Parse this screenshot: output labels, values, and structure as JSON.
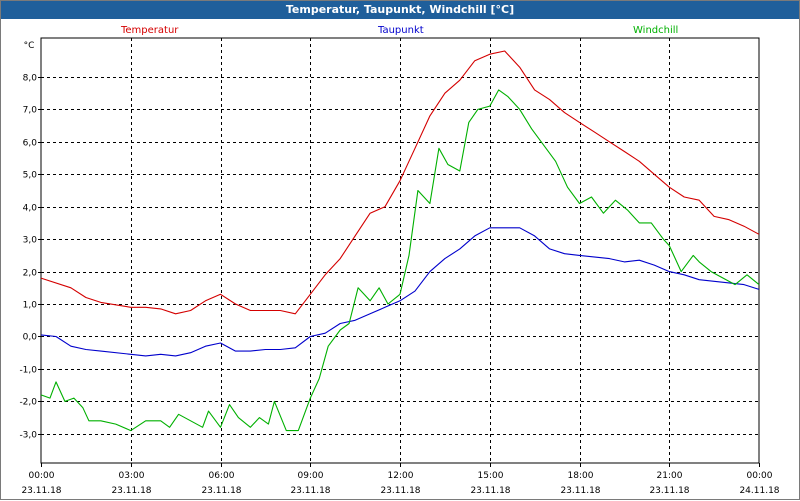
{
  "window": {
    "title": "Temperatur, Taupunkt, Windchill [°C]"
  },
  "chart_data": {
    "type": "line",
    "title": "Temperatur, Taupunkt, Windchill [°C]",
    "ylabel": "°C",
    "ylim": [
      -3.9,
      9.2
    ],
    "yticks": [
      -3.0,
      -2.0,
      -1.0,
      0.0,
      1.0,
      2.0,
      3.0,
      4.0,
      5.0,
      6.0,
      7.0,
      8.0
    ],
    "ytick_labels": [
      "-3,0",
      "-2,0",
      "-1,0",
      "0,0",
      "1,0",
      "2,0",
      "3,0",
      "4,0",
      "5,0",
      "6,0",
      "7,0",
      "8,0"
    ],
    "xlim": [
      0,
      24
    ],
    "xticks": [
      0,
      3,
      6,
      9,
      12,
      15,
      18,
      21,
      24
    ],
    "xtick_times": [
      "00:00",
      "03:00",
      "06:00",
      "09:00",
      "12:00",
      "15:00",
      "18:00",
      "21:00",
      "00:00"
    ],
    "xtick_dates": [
      "23.11.18",
      "23.11.18",
      "23.11.18",
      "23.11.18",
      "23.11.18",
      "23.11.18",
      "23.11.18",
      "23.11.18",
      "24.11.18"
    ],
    "grid": true,
    "legend_position": "top",
    "series": [
      {
        "name": "Temperatur",
        "color": "#d40000",
        "points": [
          [
            0,
            1.8
          ],
          [
            1,
            1.5
          ],
          [
            1.5,
            1.2
          ],
          [
            2,
            1.05
          ],
          [
            3,
            0.9
          ],
          [
            3.5,
            0.9
          ],
          [
            4,
            0.85
          ],
          [
            4.5,
            0.7
          ],
          [
            5,
            0.8
          ],
          [
            5.5,
            1.1
          ],
          [
            6,
            1.3
          ],
          [
            6.5,
            1.0
          ],
          [
            7,
            0.8
          ],
          [
            7.5,
            0.8
          ],
          [
            8,
            0.8
          ],
          [
            8.5,
            0.7
          ],
          [
            9,
            1.3
          ],
          [
            9.5,
            1.9
          ],
          [
            10,
            2.4
          ],
          [
            10.5,
            3.1
          ],
          [
            11,
            3.8
          ],
          [
            11.5,
            4.0
          ],
          [
            12,
            4.8
          ],
          [
            12.5,
            5.8
          ],
          [
            13,
            6.8
          ],
          [
            13.5,
            7.5
          ],
          [
            14,
            7.9
          ],
          [
            14.5,
            8.5
          ],
          [
            15,
            8.7
          ],
          [
            15.5,
            8.8
          ],
          [
            16,
            8.3
          ],
          [
            16.5,
            7.6
          ],
          [
            17,
            7.3
          ],
          [
            17.5,
            6.9
          ],
          [
            18,
            6.6
          ],
          [
            18.5,
            6.3
          ],
          [
            19,
            6.0
          ],
          [
            19.5,
            5.7
          ],
          [
            20,
            5.4
          ],
          [
            20.5,
            5.0
          ],
          [
            21,
            4.6
          ],
          [
            21.5,
            4.3
          ],
          [
            22,
            4.2
          ],
          [
            22.5,
            3.7
          ],
          [
            23,
            3.6
          ],
          [
            23.5,
            3.4
          ],
          [
            24,
            3.15
          ]
        ]
      },
      {
        "name": "Taupunkt",
        "color": "#0000cc",
        "points": [
          [
            0,
            0.05
          ],
          [
            0.5,
            0.0
          ],
          [
            1,
            -0.3
          ],
          [
            1.5,
            -0.4
          ],
          [
            2,
            -0.45
          ],
          [
            3,
            -0.55
          ],
          [
            3.5,
            -0.6
          ],
          [
            4,
            -0.55
          ],
          [
            4.5,
            -0.6
          ],
          [
            5,
            -0.5
          ],
          [
            5.5,
            -0.3
          ],
          [
            6,
            -0.2
          ],
          [
            6.5,
            -0.45
          ],
          [
            7,
            -0.45
          ],
          [
            7.5,
            -0.4
          ],
          [
            8,
            -0.4
          ],
          [
            8.5,
            -0.35
          ],
          [
            9,
            0.0
          ],
          [
            9.5,
            0.1
          ],
          [
            10,
            0.4
          ],
          [
            10.5,
            0.5
          ],
          [
            11,
            0.7
          ],
          [
            11.5,
            0.9
          ],
          [
            12,
            1.1
          ],
          [
            12.5,
            1.4
          ],
          [
            13,
            2.0
          ],
          [
            13.5,
            2.4
          ],
          [
            14,
            2.7
          ],
          [
            14.5,
            3.1
          ],
          [
            15,
            3.35
          ],
          [
            15.5,
            3.35
          ],
          [
            16,
            3.35
          ],
          [
            16.5,
            3.1
          ],
          [
            17,
            2.7
          ],
          [
            17.5,
            2.55
          ],
          [
            18,
            2.5
          ],
          [
            19,
            2.4
          ],
          [
            19.5,
            2.3
          ],
          [
            20,
            2.35
          ],
          [
            20.5,
            2.2
          ],
          [
            21,
            2.0
          ],
          [
            21.5,
            1.9
          ],
          [
            22,
            1.75
          ],
          [
            22.5,
            1.7
          ],
          [
            23,
            1.65
          ],
          [
            23.5,
            1.6
          ],
          [
            24,
            1.45
          ]
        ]
      },
      {
        "name": "Windchill",
        "color": "#00b000",
        "points": [
          [
            0,
            -1.8
          ],
          [
            0.3,
            -1.9
          ],
          [
            0.5,
            -1.4
          ],
          [
            0.8,
            -2.0
          ],
          [
            1.1,
            -1.9
          ],
          [
            1.4,
            -2.2
          ],
          [
            1.6,
            -2.6
          ],
          [
            2,
            -2.6
          ],
          [
            2.5,
            -2.7
          ],
          [
            3,
            -2.9
          ],
          [
            3.5,
            -2.6
          ],
          [
            4,
            -2.6
          ],
          [
            4.3,
            -2.8
          ],
          [
            4.6,
            -2.4
          ],
          [
            5,
            -2.6
          ],
          [
            5.4,
            -2.8
          ],
          [
            5.6,
            -2.3
          ],
          [
            6,
            -2.8
          ],
          [
            6.3,
            -2.1
          ],
          [
            6.6,
            -2.5
          ],
          [
            7,
            -2.8
          ],
          [
            7.3,
            -2.5
          ],
          [
            7.6,
            -2.7
          ],
          [
            7.8,
            -2.0
          ],
          [
            8.2,
            -2.9
          ],
          [
            8.6,
            -2.9
          ],
          [
            9,
            -1.9
          ],
          [
            9.3,
            -1.3
          ],
          [
            9.6,
            -0.3
          ],
          [
            10,
            0.2
          ],
          [
            10.3,
            0.4
          ],
          [
            10.6,
            1.5
          ],
          [
            11,
            1.1
          ],
          [
            11.3,
            1.5
          ],
          [
            11.6,
            1.0
          ],
          [
            12,
            1.3
          ],
          [
            12.3,
            2.5
          ],
          [
            12.6,
            4.5
          ],
          [
            13,
            4.1
          ],
          [
            13.3,
            5.8
          ],
          [
            13.6,
            5.3
          ],
          [
            14,
            5.1
          ],
          [
            14.3,
            6.6
          ],
          [
            14.6,
            7.0
          ],
          [
            15,
            7.1
          ],
          [
            15.3,
            7.6
          ],
          [
            15.6,
            7.4
          ],
          [
            16,
            7.0
          ],
          [
            16.4,
            6.4
          ],
          [
            16.8,
            5.9
          ],
          [
            17.2,
            5.4
          ],
          [
            17.6,
            4.6
          ],
          [
            18,
            4.1
          ],
          [
            18.4,
            4.3
          ],
          [
            18.8,
            3.8
          ],
          [
            19.2,
            4.2
          ],
          [
            19.6,
            3.9
          ],
          [
            20,
            3.5
          ],
          [
            20.4,
            3.5
          ],
          [
            20.8,
            3.0
          ],
          [
            21,
            2.8
          ],
          [
            21.4,
            2.0
          ],
          [
            21.8,
            2.5
          ],
          [
            22,
            2.3
          ],
          [
            22.4,
            2.0
          ],
          [
            22.8,
            1.8
          ],
          [
            23.2,
            1.6
          ],
          [
            23.6,
            1.9
          ],
          [
            24,
            1.6
          ]
        ]
      }
    ]
  }
}
